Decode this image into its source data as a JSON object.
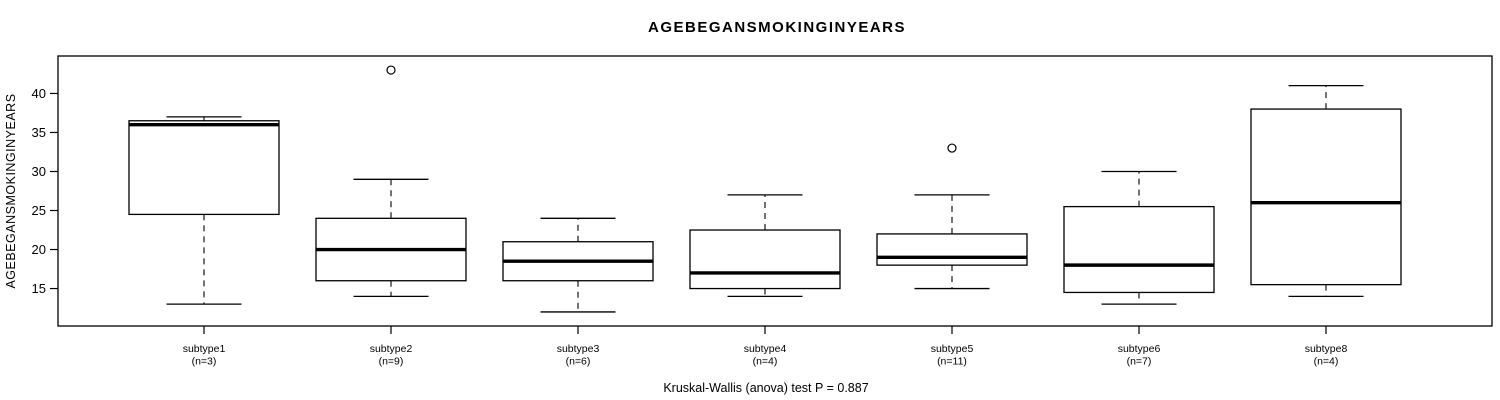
{
  "chart_data": {
    "type": "boxplot",
    "title": "AGEBEGANSMOKINGINYEARS",
    "ylabel": "AGEBEGANSMOKINGINYEARS",
    "xlabel": "",
    "footer": "Kruskal-Wallis (anova) test P = 0.887",
    "ylim": [
      10.2,
      44.8
    ],
    "yticks": [
      15,
      20,
      25,
      30,
      35,
      40
    ],
    "grid": false,
    "legend": "none",
    "categories": [
      "subtype1",
      "subtype2",
      "subtype3",
      "subtype4",
      "subtype5",
      "subtype6",
      "subtype8"
    ],
    "boxes": [
      {
        "label": "subtype1",
        "n_label": "(n=3)",
        "n": 3,
        "whisker_low": 13,
        "q1": 24.5,
        "median": 36,
        "q3": 36.5,
        "whisker_high": 37,
        "outliers": []
      },
      {
        "label": "subtype2",
        "n_label": "(n=9)",
        "n": 9,
        "whisker_low": 14,
        "q1": 16,
        "median": 20,
        "q3": 24,
        "whisker_high": 29,
        "outliers": [
          43
        ]
      },
      {
        "label": "subtype3",
        "n_label": "(n=6)",
        "n": 6,
        "whisker_low": 12,
        "q1": 16,
        "median": 18.5,
        "q3": 21,
        "whisker_high": 24,
        "outliers": []
      },
      {
        "label": "subtype4",
        "n_label": "(n=4)",
        "n": 4,
        "whisker_low": 14,
        "q1": 15,
        "median": 17,
        "q3": 22.5,
        "whisker_high": 27,
        "outliers": []
      },
      {
        "label": "subtype5",
        "n_label": "(n=11)",
        "n": 11,
        "whisker_low": 15,
        "q1": 18,
        "median": 19,
        "q3": 22,
        "whisker_high": 27,
        "outliers": [
          33
        ]
      },
      {
        "label": "subtype6",
        "n_label": "(n=7)",
        "n": 7,
        "whisker_low": 13,
        "q1": 14.5,
        "median": 18,
        "q3": 25.5,
        "whisker_high": 30,
        "outliers": []
      },
      {
        "label": "subtype8",
        "n_label": "(n=4)",
        "n": 4,
        "whisker_low": 14,
        "q1": 15.5,
        "median": 26,
        "q3": 38,
        "whisker_high": 41,
        "outliers": []
      }
    ],
    "line_color": "#000000",
    "box_fill": "#ffffff",
    "background": "#ffffff"
  }
}
